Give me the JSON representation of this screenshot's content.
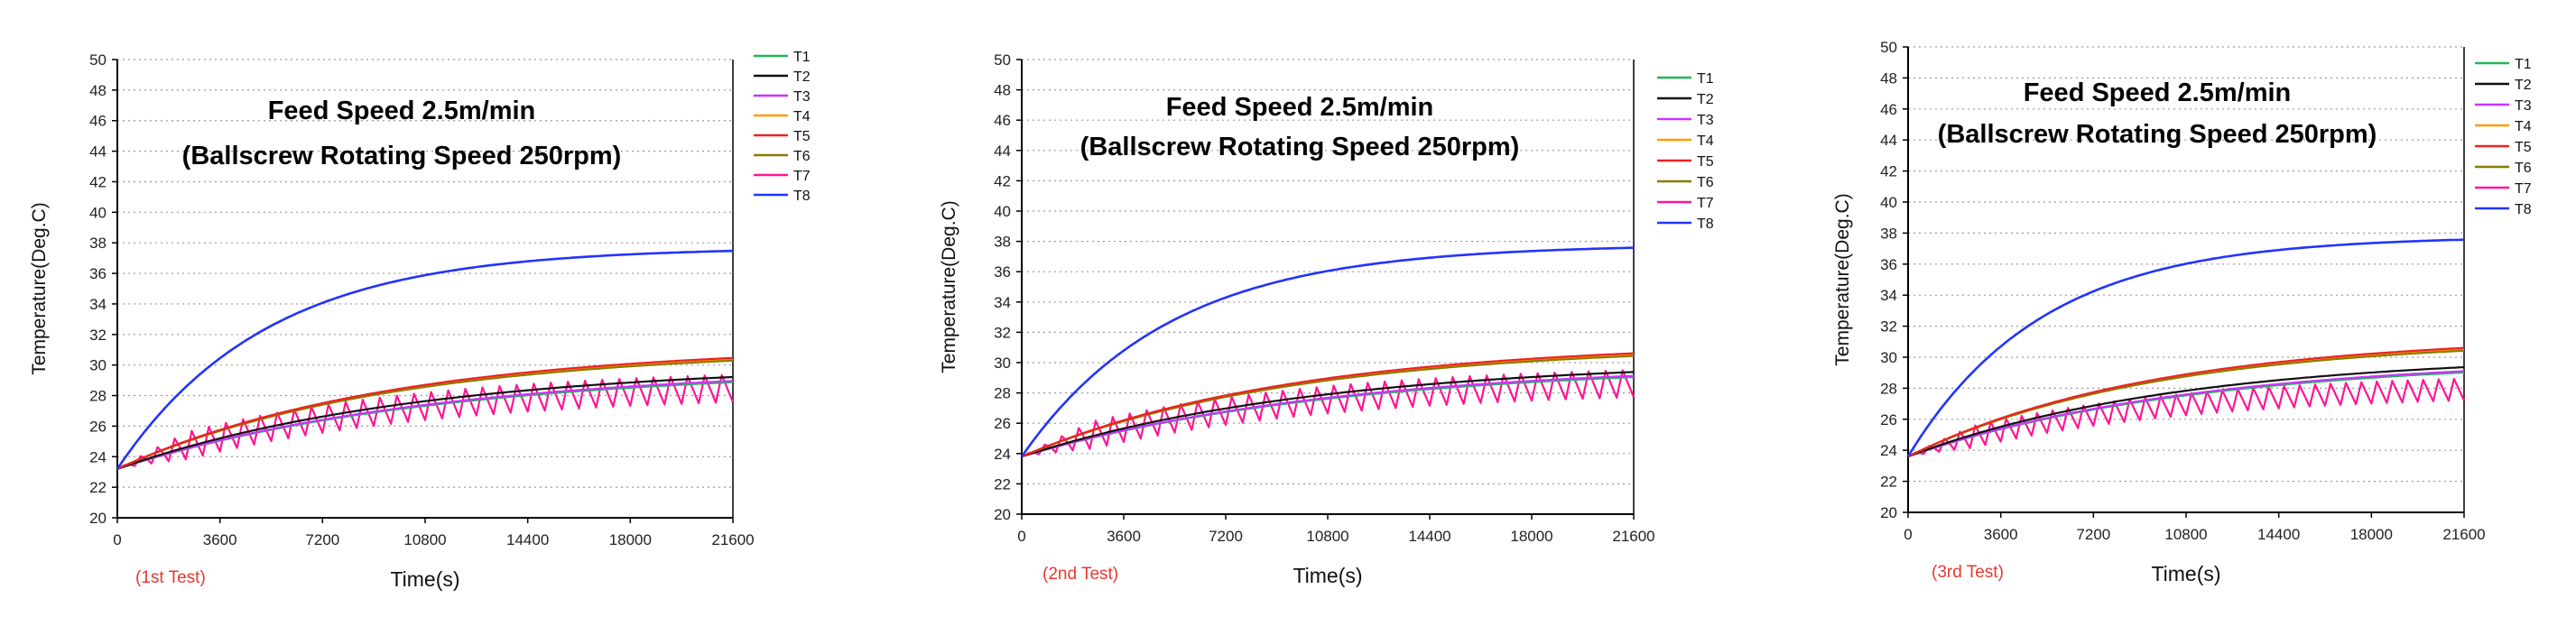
{
  "chart_data": [
    {
      "type": "line",
      "title": "Feed Speed 2.5m/min",
      "subtitle": "(Ballscrew Rotating Speed 250rpm)",
      "test_label": "(1st Test)",
      "xlabel": "Time(s)",
      "ylabel": "Temperature(Deg.C)",
      "xlim": [
        0,
        21600
      ],
      "ylim": [
        20,
        50
      ],
      "xticks": [
        0,
        3600,
        7200,
        10800,
        14400,
        18000,
        21600
      ],
      "yticks": [
        20,
        22,
        24,
        26,
        28,
        30,
        32,
        34,
        36,
        38,
        40,
        42,
        44,
        46,
        48,
        50
      ],
      "legend_position": "top-right",
      "grid": "horizontal dotted",
      "series": [
        {
          "name": "T1",
          "color": "#1db954",
          "start": 23.2,
          "end": 29.8,
          "tau": 11000
        },
        {
          "name": "T2",
          "color": "#111111",
          "start": 23.2,
          "end": 30.1,
          "tau": 10500
        },
        {
          "name": "T3",
          "color": "#cc33ff",
          "start": 23.2,
          "end": 29.9,
          "tau": 11000
        },
        {
          "name": "T4",
          "color": "#ff9900",
          "start": 23.2,
          "end": 31.2,
          "tau": 9500
        },
        {
          "name": "T5",
          "color": "#ee2222",
          "start": 23.2,
          "end": 31.3,
          "tau": 9500
        },
        {
          "name": "T6",
          "color": "#8a7a00",
          "start": 23.2,
          "end": 31.1,
          "tau": 9500
        },
        {
          "name": "T7",
          "color": "#ff1493",
          "start": 23.2,
          "end": 28.8,
          "tau": 9000,
          "oscillation": 1.8,
          "period": 600
        },
        {
          "name": "T8",
          "color": "#2233ff",
          "start": 23.2,
          "end": 37.7,
          "tau": 5200
        }
      ]
    },
    {
      "type": "line",
      "title": "Feed Speed 2.5m/min",
      "subtitle": "(Ballscrew Rotating Speed 250rpm)",
      "test_label": "(2nd Test)",
      "xlabel": "Time(s)",
      "ylabel": "Temperature(Deg.C)",
      "xlim": [
        0,
        21600
      ],
      "ylim": [
        20,
        50
      ],
      "xticks": [
        0,
        3600,
        7200,
        10800,
        14400,
        18000,
        21600
      ],
      "yticks": [
        20,
        22,
        24,
        26,
        28,
        30,
        32,
        34,
        36,
        38,
        40,
        42,
        44,
        46,
        48,
        50
      ],
      "legend_position": "top-right",
      "grid": "horizontal dotted",
      "series": [
        {
          "name": "T1",
          "color": "#1db954",
          "start": 23.8,
          "end": 29.9,
          "tau": 11000
        },
        {
          "name": "T2",
          "color": "#111111",
          "start": 23.8,
          "end": 30.2,
          "tau": 10500
        },
        {
          "name": "T3",
          "color": "#cc33ff",
          "start": 23.8,
          "end": 30.0,
          "tau": 11000
        },
        {
          "name": "T4",
          "color": "#ff9900",
          "start": 23.8,
          "end": 31.3,
          "tau": 9500
        },
        {
          "name": "T5",
          "color": "#ee2222",
          "start": 23.8,
          "end": 31.4,
          "tau": 9500
        },
        {
          "name": "T6",
          "color": "#8a7a00",
          "start": 23.8,
          "end": 31.2,
          "tau": 9500
        },
        {
          "name": "T7",
          "color": "#ff1493",
          "start": 23.8,
          "end": 28.9,
          "tau": 9000,
          "oscillation": 1.8,
          "period": 600
        },
        {
          "name": "T8",
          "color": "#2233ff",
          "start": 23.8,
          "end": 37.8,
          "tau": 5200
        }
      ]
    },
    {
      "type": "line",
      "title": "Feed Speed 2.5m/min",
      "subtitle": "(Ballscrew Rotating Speed 250rpm)",
      "test_label": "(3rd Test)",
      "xlabel": "Time(s)",
      "ylabel": "Temperature(Deg.C)",
      "xlim": [
        0,
        21600
      ],
      "ylim": [
        20,
        50
      ],
      "xticks": [
        0,
        3600,
        7200,
        10800,
        14400,
        18000,
        21600
      ],
      "yticks": [
        20,
        22,
        24,
        26,
        28,
        30,
        32,
        34,
        36,
        38,
        40,
        42,
        44,
        46,
        48,
        50
      ],
      "legend_position": "top-right",
      "grid": "horizontal dotted",
      "series": [
        {
          "name": "T1",
          "color": "#1db954",
          "start": 23.6,
          "end": 29.9,
          "tau": 11000
        },
        {
          "name": "T2",
          "color": "#111111",
          "start": 23.6,
          "end": 30.2,
          "tau": 10500
        },
        {
          "name": "T3",
          "color": "#cc33ff",
          "start": 23.6,
          "end": 30.0,
          "tau": 11000
        },
        {
          "name": "T4",
          "color": "#ff9900",
          "start": 23.6,
          "end": 31.3,
          "tau": 9500
        },
        {
          "name": "T5",
          "color": "#ee2222",
          "start": 23.6,
          "end": 31.4,
          "tau": 9500
        },
        {
          "name": "T6",
          "color": "#8a7a00",
          "start": 23.6,
          "end": 31.2,
          "tau": 9500
        },
        {
          "name": "T7",
          "color": "#ff1493",
          "start": 23.6,
          "end": 28.2,
          "tau": 9000,
          "oscillation": 1.4,
          "period": 600
        },
        {
          "name": "T8",
          "color": "#2233ff",
          "start": 23.6,
          "end": 37.8,
          "tau": 5200
        }
      ]
    }
  ]
}
